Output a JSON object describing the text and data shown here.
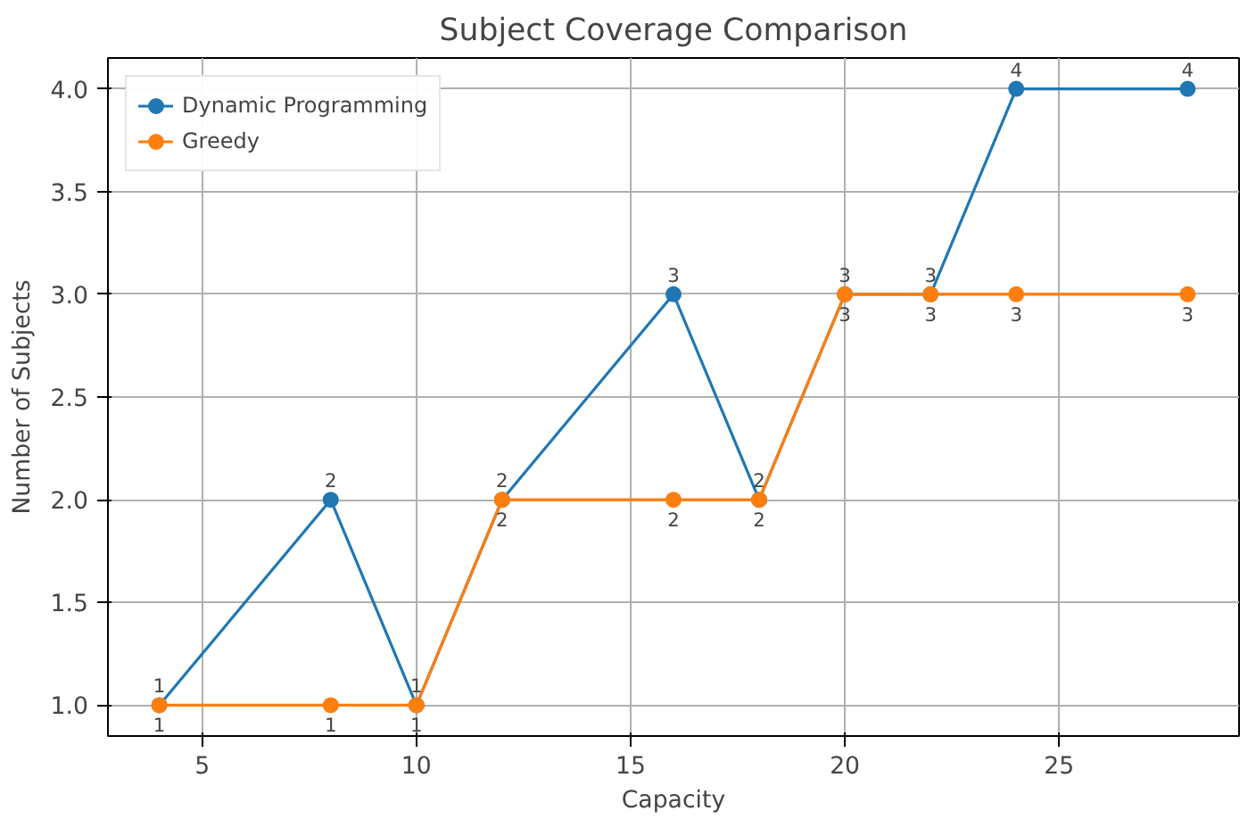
{
  "chart_data": {
    "type": "line",
    "title": "Subject Coverage Comparison",
    "xlabel": "Capacity",
    "ylabel": "Number of Subjects",
    "x": [
      4,
      8,
      10,
      12,
      16,
      18,
      20,
      22,
      24,
      28
    ],
    "series": [
      {
        "name": "Dynamic Programming",
        "color": "#1f77b4",
        "values": [
          1,
          2,
          1,
          2,
          3,
          2,
          3,
          3,
          4,
          4
        ]
      },
      {
        "name": "Greedy",
        "color": "#ff7f0e",
        "values": [
          1,
          1,
          1,
          2,
          2,
          2,
          3,
          3,
          3,
          3
        ]
      }
    ],
    "xlim": [
      2.8,
      29.2
    ],
    "ylim": [
      0.85,
      4.15
    ],
    "xticks": [
      5,
      10,
      15,
      20,
      25
    ],
    "yticks": [
      {
        "value": 1,
        "label": "1.0"
      },
      {
        "value": 1.5,
        "label": "1.5"
      },
      {
        "value": 2,
        "label": "2.0"
      },
      {
        "value": 2.5,
        "label": "2.5"
      },
      {
        "value": 3,
        "label": "3.0"
      },
      {
        "value": 3.5,
        "label": "3.5"
      },
      {
        "value": 4,
        "label": "4.0"
      }
    ],
    "grid": true,
    "legend": "top left",
    "marker": "circle",
    "line_style": "solid",
    "data_labels": true
  }
}
